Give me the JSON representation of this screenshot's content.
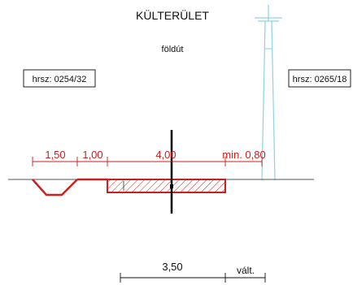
{
  "title": "KÜLTERÜLET",
  "surface": "földút",
  "parcels": {
    "left": "hrsz: 0254/32",
    "right": "hrsz: 0265/18"
  },
  "dimensions": {
    "ditch": "1,50",
    "shoulder": "1,00",
    "roadway": "4,00",
    "clearance": "min. 0,80",
    "lower": "3,50",
    "lower_suffix": "vált."
  },
  "colors": {
    "section": "#cc1f1f",
    "pole": "#8fd3e0",
    "axis": "#000000",
    "ground": "#555555"
  }
}
